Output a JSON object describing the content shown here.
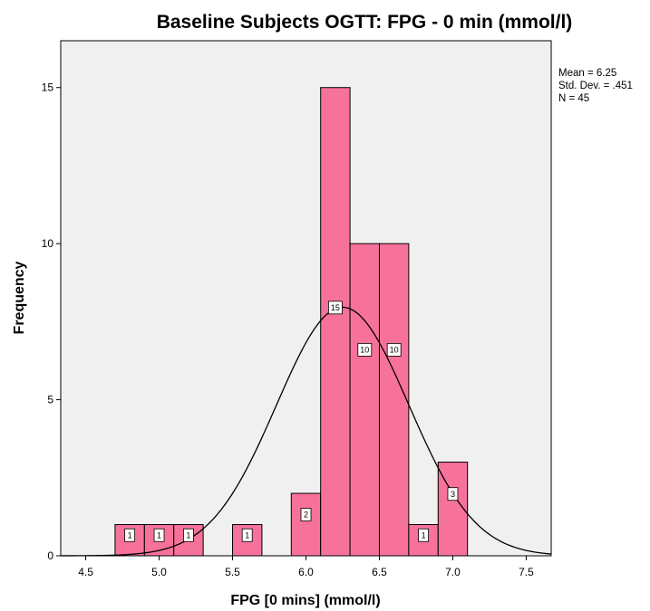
{
  "chart_data": {
    "type": "bar",
    "title": "Baseline Subjects OGTT: FPG - 0 min (mmol/l)",
    "xlabel": "FPG [0 mins] (mmol/l)",
    "ylabel": "Frequency",
    "xlim": [
      4.33,
      7.67
    ],
    "ylim": [
      0,
      16.5
    ],
    "x_ticks": [
      "4.5",
      "5.0",
      "5.5",
      "6.0",
      "6.5",
      "7.0",
      "7.5"
    ],
    "y_ticks": [
      "0",
      "5",
      "10",
      "15"
    ],
    "bin_width": 0.2,
    "bins": [
      {
        "start": 4.7,
        "end": 4.9,
        "count": 1,
        "label": "1"
      },
      {
        "start": 4.9,
        "end": 5.1,
        "count": 1,
        "label": "1"
      },
      {
        "start": 5.1,
        "end": 5.3,
        "count": 1,
        "label": "1"
      },
      {
        "start": 5.5,
        "end": 5.7,
        "count": 1,
        "label": "1"
      },
      {
        "start": 5.9,
        "end": 6.1,
        "count": 2,
        "label": "2"
      },
      {
        "start": 6.1,
        "end": 6.3,
        "count": 15,
        "label": "15"
      },
      {
        "start": 6.3,
        "end": 6.5,
        "count": 10,
        "label": "10"
      },
      {
        "start": 6.5,
        "end": 6.7,
        "count": 10,
        "label": "10"
      },
      {
        "start": 6.7,
        "end": 6.9,
        "count": 1,
        "label": "1"
      },
      {
        "start": 6.9,
        "end": 7.1,
        "count": 3,
        "label": "3"
      }
    ],
    "normal_curve": {
      "mean": 6.25,
      "sd": 0.451,
      "n": 45
    },
    "stats": [
      "Mean = 6.25",
      "Std. Dev. = .451",
      "N = 45"
    ],
    "colors": {
      "bar_fill": "#f7729a",
      "bar_stroke": "#000000",
      "plot_background": "#f0f0f0",
      "curve": "#000000"
    },
    "grid": false,
    "legend": "top-right"
  }
}
